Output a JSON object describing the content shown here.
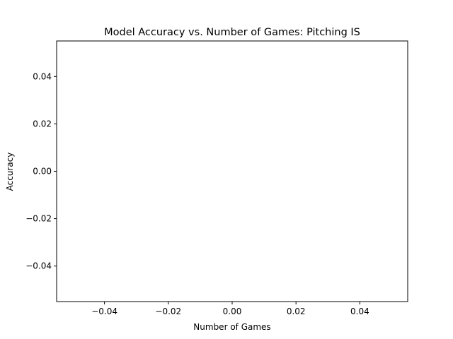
{
  "chart_data": {
    "type": "line",
    "title": "Model Accuracy vs. Number of Games: Pitching IS",
    "xlabel": "Number of Games",
    "ylabel": "Accuracy",
    "xlim": [
      -0.055,
      0.055
    ],
    "ylim": [
      -0.055,
      0.055
    ],
    "xticks": [
      -0.04,
      -0.02,
      0.0,
      0.02,
      0.04
    ],
    "yticks": [
      -0.04,
      -0.02,
      0.0,
      0.02,
      0.04
    ],
    "xtick_labels": [
      "−0.04",
      "−0.02",
      "0.00",
      "0.02",
      "0.04"
    ],
    "ytick_labels": [
      "−0.04",
      "−0.02",
      "0.00",
      "0.02",
      "0.04"
    ],
    "grid": false,
    "series": []
  }
}
